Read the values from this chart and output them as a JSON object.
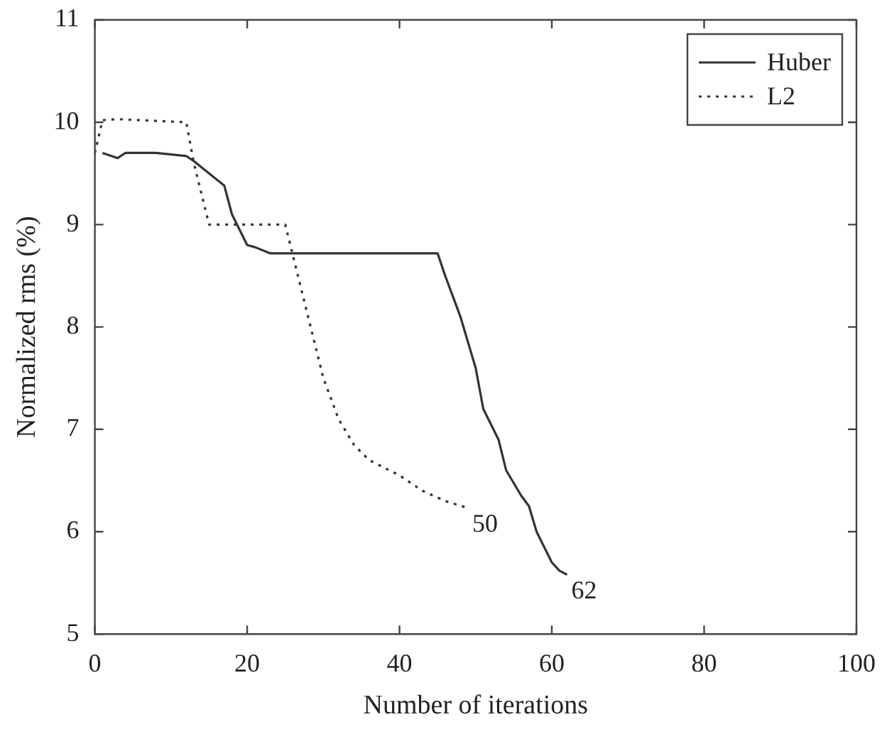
{
  "chart_data": {
    "type": "line",
    "xlabel": "Number of iterations",
    "ylabel": "Normalized rms (%)",
    "xlim": [
      0,
      100
    ],
    "xticks": [
      0,
      20,
      40,
      60,
      80,
      100
    ],
    "ylim": [
      5,
      11
    ],
    "yticks": [
      5,
      6,
      7,
      8,
      9,
      10,
      11
    ],
    "legend": "top right",
    "marker": "none",
    "series": [
      {
        "name": "Huber",
        "color": "#333333",
        "line_style": "solid",
        "x": [
          1,
          3,
          4,
          8,
          12,
          13,
          17,
          18,
          20,
          21,
          23,
          45,
          46,
          48,
          50,
          51,
          53,
          54,
          56,
          57,
          58,
          60,
          61,
          62
        ],
        "values": [
          9.7,
          9.65,
          9.7,
          9.7,
          9.67,
          9.62,
          9.38,
          9.1,
          8.8,
          8.78,
          8.72,
          8.72,
          8.5,
          8.1,
          7.6,
          7.2,
          6.9,
          6.6,
          6.35,
          6.25,
          6.0,
          5.7,
          5.62,
          5.58
        ]
      },
      {
        "name": "L2",
        "color": "#333333",
        "line_style": "dotted",
        "x": [
          0,
          1,
          3,
          12,
          13,
          15,
          25,
          26,
          28,
          30,
          32,
          34,
          36,
          40,
          43,
          46,
          49
        ],
        "values": [
          9.7,
          10.02,
          10.03,
          10.0,
          9.6,
          9.0,
          9.0,
          8.7,
          8.1,
          7.5,
          7.1,
          6.85,
          6.7,
          6.55,
          6.4,
          6.3,
          6.23
        ]
      }
    ],
    "annotations": [
      {
        "text": "50",
        "x": 49,
        "y": 6.23
      },
      {
        "text": "62",
        "x": 62,
        "y": 5.58
      }
    ]
  }
}
